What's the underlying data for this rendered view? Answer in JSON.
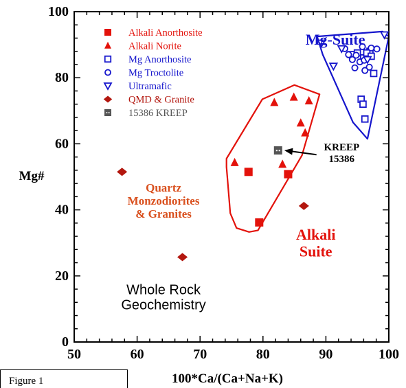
{
  "figure_label": "Figure 1",
  "colors": {
    "red": "#e3120b",
    "dark_red": "#b3170f",
    "blue": "#1515cc",
    "orange": "#d9501e",
    "gray": "#555555",
    "black": "#000000"
  },
  "chart_data": {
    "type": "scatter",
    "xlabel": "100*Ca/(Ca+Na+K)",
    "ylabel": "Mg#",
    "xlim": [
      50,
      100
    ],
    "ylim": [
      0,
      100
    ],
    "x_ticks": [
      "50",
      "60",
      "70",
      "80",
      "90",
      "100"
    ],
    "y_ticks": [
      "0",
      "20",
      "40",
      "60",
      "80",
      "100"
    ],
    "grid": false,
    "legend_position": "top-left",
    "series": [
      {
        "name": "Alkali Anorthosite",
        "marker": "square",
        "color": "#e3120b",
        "points": [
          [
            77.7,
            51.5
          ],
          [
            79.4,
            36.2
          ],
          [
            84.0,
            50.8
          ]
        ]
      },
      {
        "name": "Alkali Norite",
        "marker": "triangle",
        "color": "#e3120b",
        "points": [
          [
            75.5,
            54.3
          ],
          [
            81.8,
            72.5
          ],
          [
            84.9,
            74.1
          ],
          [
            87.3,
            73.0
          ],
          [
            86.0,
            66.3
          ],
          [
            86.7,
            63.3
          ],
          [
            83.1,
            53.8
          ]
        ]
      },
      {
        "name": "Mg Anorthosite",
        "marker": "open-square",
        "color": "#1515cc",
        "points": [
          [
            94.0,
            87.0
          ],
          [
            95.6,
            73.5
          ],
          [
            95.9,
            72.0
          ],
          [
            96.2,
            67.5
          ],
          [
            97.6,
            81.3
          ],
          [
            96.0,
            86.0
          ],
          [
            97.0,
            88.0
          ],
          [
            96.5,
            87.5
          ],
          [
            97.2,
            86.5
          ],
          [
            95.0,
            87.5
          ]
        ]
      },
      {
        "name": "Mg Troctolite",
        "marker": "open-circle",
        "color": "#1515cc",
        "points": [
          [
            93.0,
            88.8
          ],
          [
            93.6,
            87.0
          ],
          [
            94.2,
            85.5
          ],
          [
            94.8,
            86.8
          ],
          [
            95.4,
            84.8
          ],
          [
            96.1,
            85.3
          ],
          [
            96.9,
            83.2
          ],
          [
            94.6,
            83.0
          ],
          [
            96.2,
            82.2
          ],
          [
            98.1,
            88.7
          ],
          [
            97.2,
            89.0
          ],
          [
            95.8,
            89.4
          ]
        ]
      },
      {
        "name": "Ultramafic",
        "marker": "inverted-triangle",
        "color": "#1515cc",
        "points": [
          [
            89.3,
            90.5
          ],
          [
            91.2,
            83.5
          ],
          [
            92.5,
            88.8
          ],
          [
            99.3,
            93.0
          ],
          [
            96.6,
            85.5
          ]
        ]
      },
      {
        "name": "QMD & Granite",
        "marker": "diamond",
        "color": "#b3170f",
        "points": [
          [
            57.6,
            51.5
          ],
          [
            67.2,
            25.7
          ],
          [
            86.5,
            41.2
          ]
        ]
      },
      {
        "name": "15386 KREEP",
        "marker": "hatched-square",
        "color": "#555555",
        "points": [
          [
            82.4,
            58.0
          ]
        ]
      }
    ],
    "fields": [
      {
        "label": "Mg-Suite",
        "color": "#1515cc",
        "polygon": [
          [
            88.6,
            92.5
          ],
          [
            99.0,
            94.0
          ],
          [
            100.0,
            92.5
          ],
          [
            96.6,
            61.5
          ],
          [
            94.3,
            66.5
          ],
          [
            89.5,
            87.0
          ]
        ]
      },
      {
        "label": "Alkali Suite",
        "color": "#e3120b",
        "polygon": [
          [
            74.2,
            55.5
          ],
          [
            79.9,
            73.5
          ],
          [
            85.0,
            77.8
          ],
          [
            89.0,
            75.0
          ],
          [
            86.2,
            56.5
          ],
          [
            79.2,
            33.8
          ],
          [
            77.8,
            33.3
          ],
          [
            75.8,
            34.5
          ],
          [
            74.8,
            39.0
          ],
          [
            74.2,
            53.0
          ]
        ]
      }
    ],
    "annotations": [
      {
        "lines": [
          "Mg-Suite"
        ],
        "x": 91.5,
        "y": 90.0,
        "color": "#1515cc",
        "size": 22
      },
      {
        "lines": [
          "Alkali",
          "Suite"
        ],
        "x": 88.4,
        "y": 31.0,
        "color": "#e3120b",
        "size": 22
      },
      {
        "lines": [
          "KREEP",
          "15386"
        ],
        "x": 92.5,
        "y": 58.0,
        "color": "#000000",
        "size": 15
      },
      {
        "lines": [
          "Quartz",
          "Monzodiorites",
          "& Granites"
        ],
        "x": 64.2,
        "y": 45.5,
        "color": "#d9501e",
        "size": 17
      },
      {
        "lines": [
          "Whole Rock",
          "Geochemistry"
        ],
        "x": 64.2,
        "y": 14.5,
        "color": "#000000",
        "size": 20
      }
    ],
    "arrow": {
      "from": [
        88.5,
        56.7
      ],
      "to": [
        83.4,
        58.0
      ]
    }
  }
}
